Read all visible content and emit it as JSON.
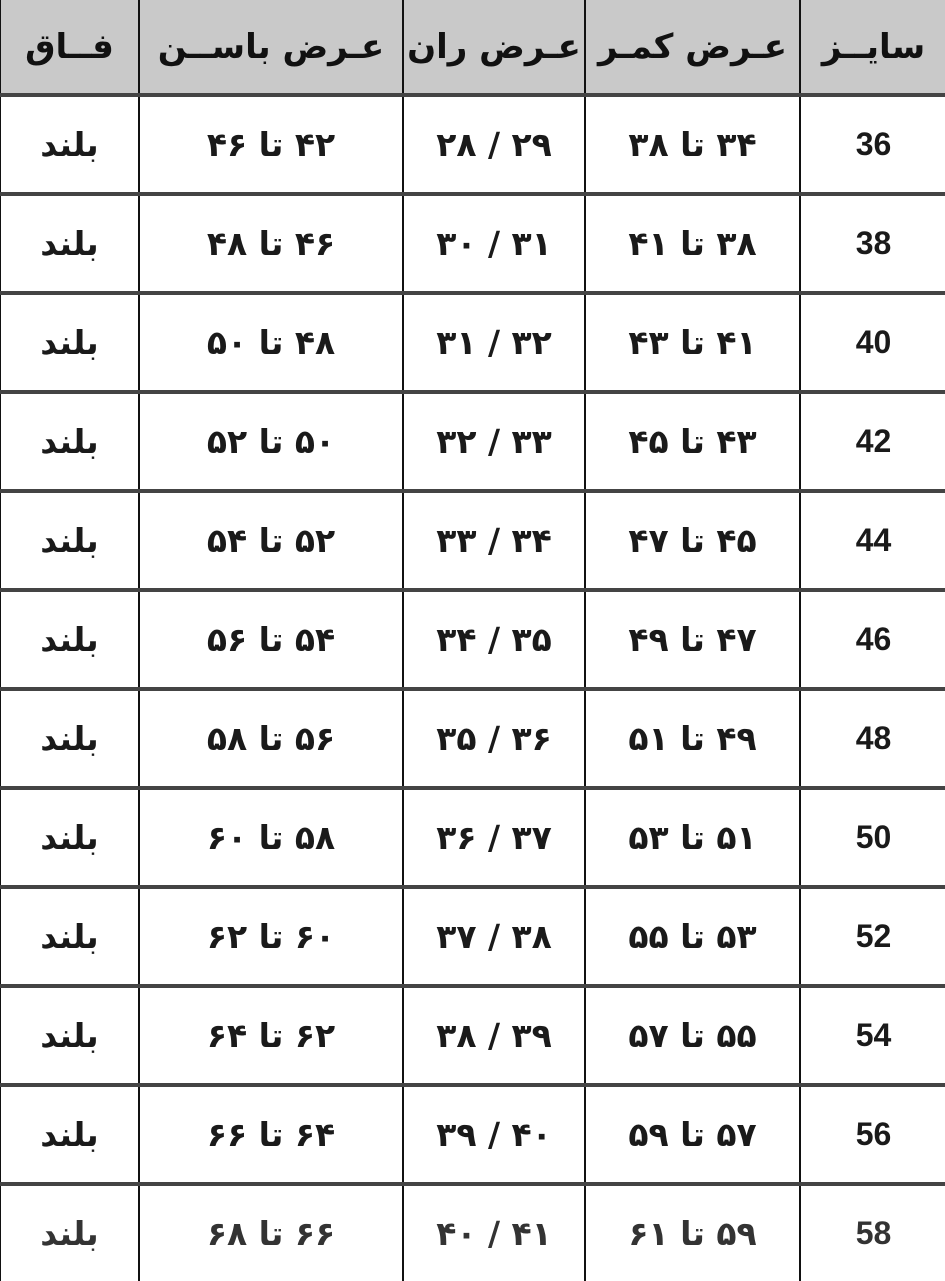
{
  "header": {
    "size": "سایــز",
    "waist": "عـرض کمـر",
    "thigh": "عـرض ران",
    "hip": "عـرض باســن",
    "rise": "فــاق"
  },
  "rows": [
    {
      "size": "36",
      "waist": "۳۴ تا ۳۸",
      "thigh": "۲۹ / ۲۸",
      "hip": "۴۲ تا ۴۶",
      "rise": "بلند"
    },
    {
      "size": "38",
      "waist": "۳۸ تا ۴۱",
      "thigh": "۳۱ / ۳۰",
      "hip": "۴۶ تا ۴۸",
      "rise": "بلند"
    },
    {
      "size": "40",
      "waist": "۴۱ تا ۴۳",
      "thigh": "۳۲ / ۳۱",
      "hip": "۴۸ تا ۵۰",
      "rise": "بلند"
    },
    {
      "size": "42",
      "waist": "۴۳ تا ۴۵",
      "thigh": "۳۳ / ۳۲",
      "hip": "۵۰ تا ۵۲",
      "rise": "بلند"
    },
    {
      "size": "44",
      "waist": "۴۵ تا ۴۷",
      "thigh": "۳۴ / ۳۳",
      "hip": "۵۲ تا ۵۴",
      "rise": "بلند"
    },
    {
      "size": "46",
      "waist": "۴۷ تا ۴۹",
      "thigh": "۳۵ / ۳۴",
      "hip": "۵۴ تا ۵۶",
      "rise": "بلند"
    },
    {
      "size": "48",
      "waist": "۴۹ تا ۵۱",
      "thigh": "۳۶ / ۳۵",
      "hip": "۵۶ تا ۵۸",
      "rise": "بلند"
    },
    {
      "size": "50",
      "waist": "۵۱ تا ۵۳",
      "thigh": "۳۷ / ۳۶",
      "hip": "۵۸ تا ۶۰",
      "rise": "بلند"
    },
    {
      "size": "52",
      "waist": "۵۳ تا ۵۵",
      "thigh": "۳۸ / ۳۷",
      "hip": "۶۰ تا ۶۲",
      "rise": "بلند"
    },
    {
      "size": "54",
      "waist": "۵۵ تا ۵۷",
      "thigh": "۳۹ / ۳۸",
      "hip": "۶۲ تا ۶۴",
      "rise": "بلند"
    },
    {
      "size": "56",
      "waist": "۵۷ تا ۵۹",
      "thigh": "۴۰ / ۳۹",
      "hip": "۶۴ تا ۶۶",
      "rise": "بلند"
    },
    {
      "size": "58",
      "waist": "۵۹ تا ۶۱",
      "thigh": "۴۱ / ۴۰",
      "hip": "۶۶ تا ۶۸",
      "rise": "بلند"
    }
  ],
  "colors": {
    "header_bg": "#c9c9c9",
    "border": "#111111",
    "text": "#1a1a1a"
  }
}
